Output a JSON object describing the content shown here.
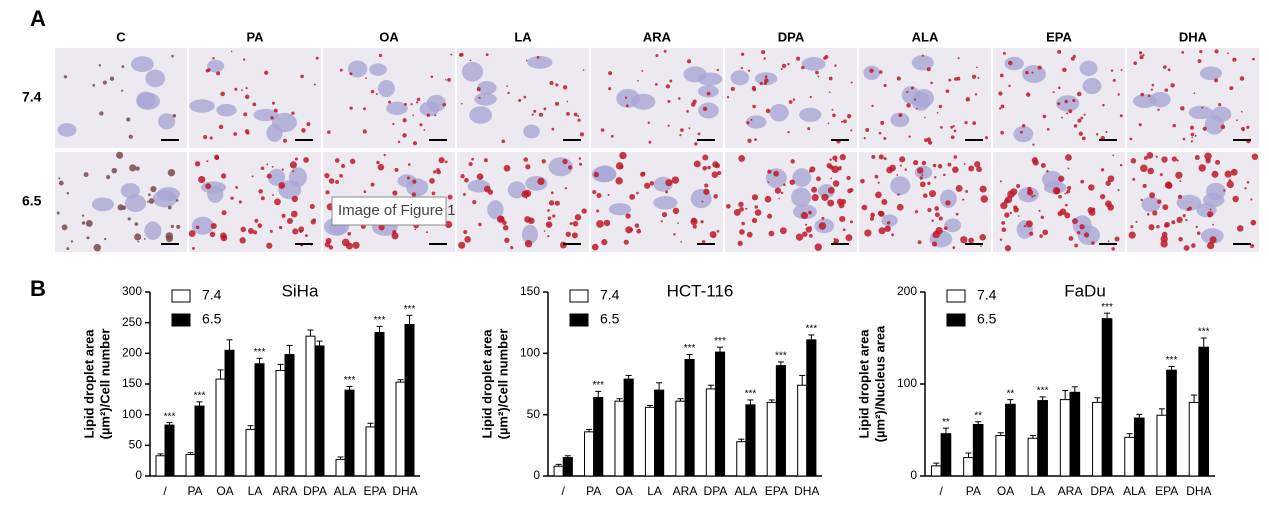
{
  "figure": {
    "panel_labels": [
      "A",
      "B"
    ],
    "columns": [
      "C",
      "PA",
      "OA",
      "LA",
      "ARA",
      "DPA",
      "ALA",
      "EPA",
      "DHA"
    ],
    "rows": [
      "7.4",
      "6.5"
    ],
    "tooltip": "Image of Figure 1"
  },
  "chart_data": [
    {
      "type": "bar",
      "title": "SiHa",
      "y_label": [
        "Lipid droplet area",
        "(µm²)/Cell number"
      ],
      "categories": [
        "/",
        "PA",
        "OA",
        "LA",
        "ARA",
        "DPA",
        "ALA",
        "EPA",
        "DHA"
      ],
      "series": [
        {
          "name": "7.4",
          "color": "#ffffff",
          "values": [
            33,
            35,
            158,
            76,
            172,
            228,
            27,
            80,
            153
          ],
          "errors": [
            3,
            3,
            15,
            6,
            10,
            10,
            4,
            6,
            4
          ]
        },
        {
          "name": "6.5",
          "color": "#000000",
          "values": [
            83,
            114,
            205,
            183,
            198,
            212,
            140,
            234,
            247
          ],
          "errors": [
            4,
            7,
            17,
            9,
            15,
            8,
            6,
            10,
            15
          ],
          "significance": [
            "***",
            "***",
            null,
            "***",
            null,
            null,
            "***",
            "***",
            "***"
          ]
        }
      ],
      "ylim": [
        0,
        300
      ],
      "yticks": [
        0,
        50,
        100,
        150,
        200,
        250,
        300
      ]
    },
    {
      "type": "bar",
      "title": "HCT-116",
      "y_label": [
        "Lipid droplet area",
        "(µm²)/Cell number"
      ],
      "categories": [
        "/",
        "PA",
        "OA",
        "LA",
        "ARA",
        "DPA",
        "ALA",
        "EPA",
        "DHA"
      ],
      "series": [
        {
          "name": "7.4",
          "color": "#ffffff",
          "values": [
            8,
            36,
            61,
            56,
            61,
            71,
            28,
            60,
            74
          ],
          "errors": [
            1.5,
            2,
            2,
            1.5,
            2,
            3,
            2,
            2,
            8
          ]
        },
        {
          "name": "6.5",
          "color": "#000000",
          "values": [
            15,
            64,
            79,
            70,
            95,
            101,
            58,
            90,
            111
          ],
          "errors": [
            1.5,
            5,
            3,
            6,
            4,
            4,
            4,
            3,
            4
          ],
          "significance": [
            null,
            "***",
            null,
            null,
            "***",
            "***",
            "***",
            "***",
            "***"
          ]
        }
      ],
      "ylim": [
        0,
        150
      ],
      "yticks": [
        0,
        50,
        100,
        150
      ]
    },
    {
      "type": "bar",
      "title": "FaDu",
      "y_label": [
        "Lipid droplet area",
        "(µm²)/Nucleus area"
      ],
      "categories": [
        "/",
        "PA",
        "OA",
        "LA",
        "ARA",
        "DPA",
        "ALA",
        "EPA",
        "DHA"
      ],
      "series": [
        {
          "name": "7.4",
          "color": "#ffffff",
          "values": [
            11,
            20,
            44,
            41,
            83,
            80,
            42,
            66,
            80
          ],
          "errors": [
            3,
            5,
            3,
            3,
            10,
            5,
            4,
            7,
            8
          ]
        },
        {
          "name": "6.5",
          "color": "#000000",
          "values": [
            46,
            56,
            78,
            82,
            91,
            171,
            63,
            115,
            140
          ],
          "errors": [
            6,
            3,
            5,
            4,
            6,
            6,
            4,
            4,
            10
          ],
          "significance": [
            "**",
            "**",
            "**",
            "***",
            null,
            "***",
            null,
            "***",
            "***"
          ]
        }
      ],
      "ylim": [
        0,
        200
      ],
      "yticks": [
        0,
        100,
        200
      ]
    }
  ]
}
